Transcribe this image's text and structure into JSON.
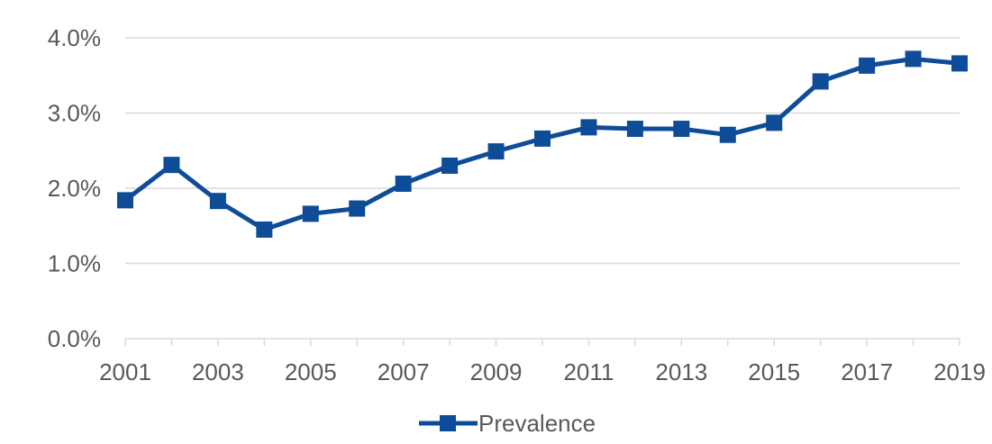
{
  "chart_data": {
    "type": "line",
    "title": "",
    "xlabel": "",
    "ylabel": "",
    "x": [
      2001,
      2002,
      2003,
      2004,
      2005,
      2006,
      2007,
      2008,
      2009,
      2010,
      2011,
      2012,
      2013,
      2014,
      2015,
      2016,
      2017,
      2018,
      2019
    ],
    "x_tick_labels": [
      "2001",
      "2003",
      "2005",
      "2007",
      "2009",
      "2011",
      "2013",
      "2015",
      "2017",
      "2019"
    ],
    "y_tick_labels": [
      "0.0%",
      "1.0%",
      "2.0%",
      "3.0%",
      "4.0%"
    ],
    "ylim": [
      0,
      4
    ],
    "y_unit": "%",
    "grid": "horizontal",
    "legend_position": "bottom",
    "marker": "square",
    "series": [
      {
        "name": "Prevalence",
        "color": "#0f4c97",
        "values": [
          1.84,
          2.31,
          1.83,
          1.45,
          1.66,
          1.73,
          2.06,
          2.3,
          2.49,
          2.66,
          2.81,
          2.79,
          2.79,
          2.71,
          2.87,
          3.42,
          3.63,
          3.72,
          3.66
        ]
      }
    ]
  }
}
